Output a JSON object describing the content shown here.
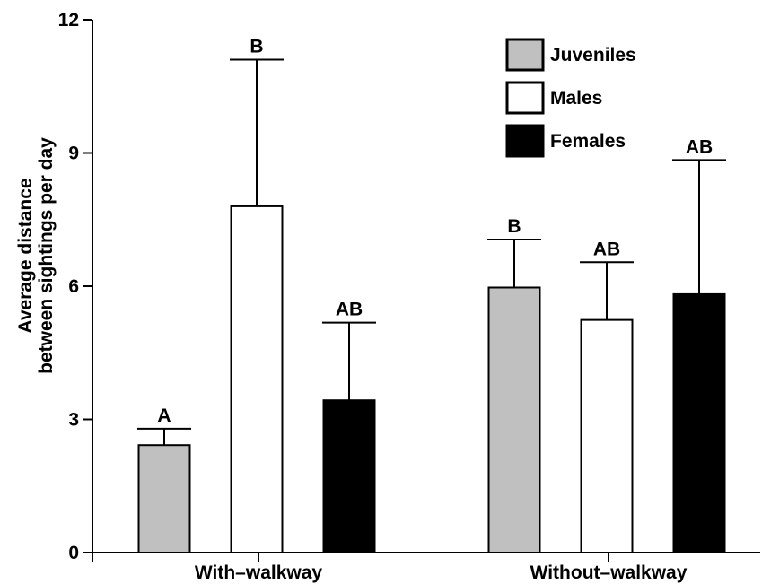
{
  "chart_data": {
    "type": "bar",
    "title": "",
    "xlabel": "",
    "ylabel": [
      "Average distance",
      "between sightings per day"
    ],
    "ylim": [
      0,
      12
    ],
    "yticks": [
      0,
      3,
      6,
      9,
      12
    ],
    "grid": false,
    "legend_position": "top-right",
    "categories": [
      "With–walkway",
      "Without–walkway"
    ],
    "series": [
      {
        "name": "Juveniles",
        "color": "#c0c0c0",
        "values": [
          2.42,
          5.97
        ],
        "errors": [
          0.37,
          1.08
        ],
        "labels": [
          "A",
          "B"
        ]
      },
      {
        "name": "Males",
        "color": "#ffffff",
        "values": [
          7.8,
          5.24
        ],
        "errors": [
          3.3,
          1.3
        ],
        "labels": [
          "B",
          "AB"
        ]
      },
      {
        "name": "Females",
        "color": "#000000",
        "values": [
          3.43,
          5.82
        ],
        "errors": [
          1.75,
          3.02
        ],
        "labels": [
          "AB",
          "AB"
        ]
      }
    ]
  }
}
